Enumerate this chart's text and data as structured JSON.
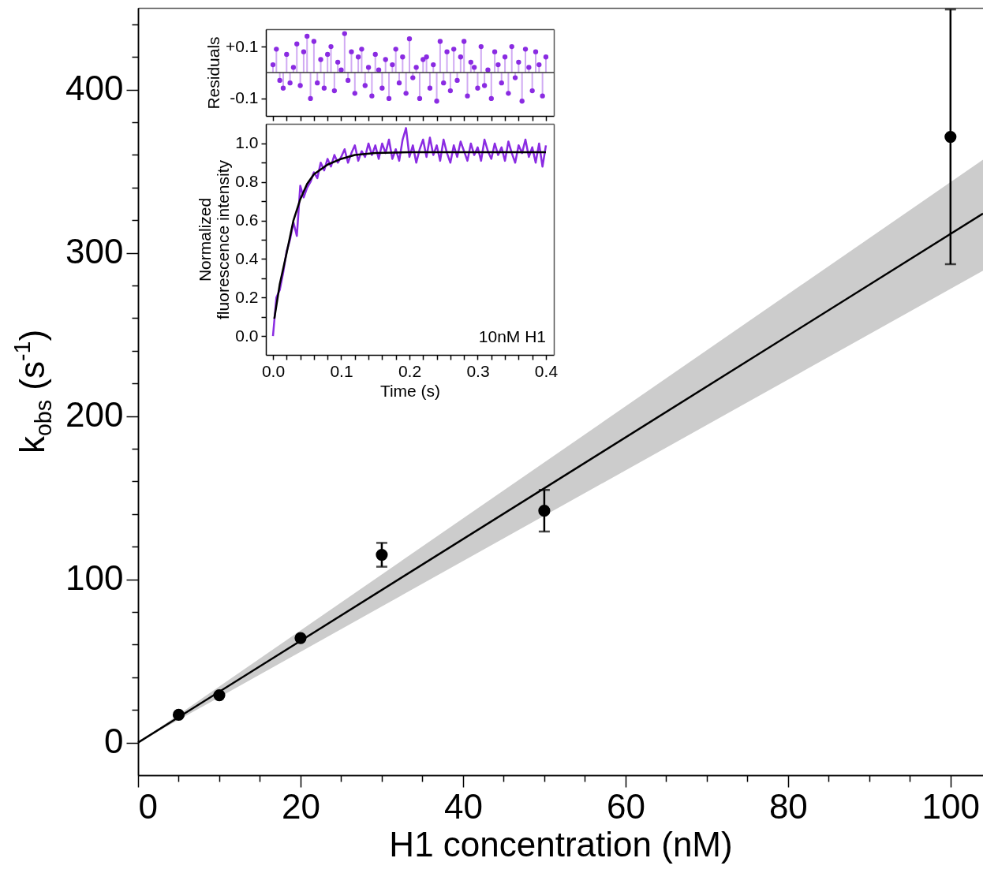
{
  "chart_data": [
    {
      "type": "scatter",
      "xlabel": "H1 concentration (nM)",
      "ylabel": "k$_{obs}$ (s$^{-1}$)",
      "xlim": [
        0,
        104
      ],
      "ylim": [
        -20,
        450
      ],
      "xticks": [
        0,
        {
          "value": 5,
          "label": null
        },
        {
          "value": 10,
          "label": null
        },
        {
          "value": 15,
          "label": null
        },
        20,
        {
          "value": 25,
          "label": null
        },
        {
          "value": 30,
          "label": null
        },
        {
          "value": 35,
          "label": null
        },
        40,
        {
          "value": 45,
          "label": null
        },
        {
          "value": 50,
          "label": null
        },
        {
          "value": 55,
          "label": null
        },
        60,
        {
          "value": 65,
          "label": null
        },
        {
          "value": 70,
          "label": null
        },
        {
          "value": 75,
          "label": null
        },
        80,
        {
          "value": 85,
          "label": null
        },
        {
          "value": 90,
          "label": null
        },
        {
          "value": 95,
          "label": null
        },
        100
      ],
      "yticks": [
        0,
        {
          "value": 20,
          "label": null
        },
        {
          "value": 40,
          "label": null
        },
        {
          "value": 60,
          "label": null
        },
        {
          "value": 80,
          "label": null
        },
        100,
        {
          "value": 120,
          "label": null
        },
        {
          "value": 140,
          "label": null
        },
        {
          "value": 160,
          "label": null
        },
        {
          "value": 180,
          "label": null
        },
        200,
        {
          "value": 220,
          "label": null
        },
        {
          "value": 240,
          "label": null
        },
        {
          "value": 260,
          "label": null
        },
        {
          "value": 280,
          "label": null
        },
        300,
        {
          "value": 320,
          "label": null
        },
        {
          "value": 340,
          "label": null
        },
        {
          "value": 360,
          "label": null
        },
        {
          "value": 380,
          "label": null
        },
        400,
        {
          "value": 420,
          "label": null
        },
        {
          "value": 440,
          "label": null
        }
      ],
      "series": [
        {
          "type": "scatter",
          "marker": "circle",
          "color": "#000000",
          "x": [
            5,
            10,
            20,
            30,
            50,
            100
          ],
          "values": [
            17,
            29,
            64,
            115,
            142,
            371
          ],
          "errors": [
            null,
            null,
            null,
            7.3,
            12.7,
            78
          ]
        },
        {
          "type": "line",
          "color": "#000000",
          "x": [
            0,
            104
          ],
          "values": [
            0,
            324
          ],
          "lower": [
            0,
            289
          ],
          "upper": [
            0,
            357
          ]
        }
      ]
    },
    {
      "type": "lollipop",
      "ylabel": "Residuals",
      "xlim": [
        -0.0104,
        0.4116
      ],
      "ylim": [
        -0.167,
        0.167
      ],
      "tick_labels": "y",
      "xticks": [
        {
          "value": 0,
          "label": null
        },
        {
          "value": 0.02,
          "label": null
        },
        {
          "value": 0.04,
          "label": null
        },
        {
          "value": 0.06,
          "label": null
        },
        {
          "value": 0.08,
          "label": null
        },
        {
          "value": 0.1,
          "label": null
        },
        {
          "value": 0.12,
          "label": null
        },
        {
          "value": 0.14,
          "label": null
        },
        {
          "value": 0.16,
          "label": null
        },
        {
          "value": 0.18,
          "label": null
        },
        {
          "value": 0.2,
          "label": null
        },
        {
          "value": 0.22,
          "label": null
        },
        {
          "value": 0.24,
          "label": null
        },
        {
          "value": 0.26,
          "label": null
        },
        {
          "value": 0.28,
          "label": null
        },
        {
          "value": 0.3,
          "label": null
        },
        {
          "value": 0.32,
          "label": null
        },
        {
          "value": 0.34,
          "label": null
        },
        {
          "value": 0.36,
          "label": null
        },
        {
          "value": 0.38,
          "label": null
        },
        {
          "value": 0.4,
          "label": null
        }
      ],
      "yticks": [
        {
          "value": -0.1,
          "label": "-0.1"
        },
        {
          "value": 0.1,
          "label": "+0.1"
        }
      ],
      "ref_lines": [
        {
          "axis": "y",
          "value": 0,
          "color": "#333333"
        }
      ],
      "series": [
        {
          "color": "#8a2be2",
          "x": [
            0,
            0.005,
            0.01,
            0.015,
            0.02,
            0.025,
            0.03,
            0.035,
            0.04,
            0.045,
            0.05,
            0.055,
            0.06,
            0.065,
            0.07,
            0.075,
            0.08,
            0.085,
            0.09,
            0.095,
            0.1,
            0.105,
            0.11,
            0.115,
            0.12,
            0.125,
            0.13,
            0.135,
            0.14,
            0.145,
            0.15,
            0.155,
            0.16,
            0.165,
            0.17,
            0.175,
            0.18,
            0.185,
            0.19,
            0.195,
            0.2,
            0.205,
            0.21,
            0.215,
            0.22,
            0.225,
            0.23,
            0.235,
            0.24,
            0.245,
            0.25,
            0.255,
            0.26,
            0.265,
            0.27,
            0.275,
            0.28,
            0.285,
            0.29,
            0.295,
            0.3,
            0.305,
            0.31,
            0.315,
            0.32,
            0.325,
            0.33,
            0.335,
            0.34,
            0.345,
            0.35,
            0.355,
            0.36,
            0.365,
            0.37,
            0.375,
            0.38,
            0.385,
            0.39,
            0.395,
            0.4
          ],
          "values": [
            0.03,
            0.09,
            -0.03,
            -0.06,
            0.07,
            -0.04,
            0.02,
            0.11,
            -0.05,
            0.08,
            0.14,
            -0.1,
            0.12,
            -0.04,
            0.05,
            -0.06,
            0.07,
            0.1,
            -0.07,
            0.04,
            0.01,
            0.15,
            -0.03,
            0.08,
            -0.08,
            0.06,
            0.09,
            -0.05,
            0.02,
            -0.09,
            0.07,
            0.01,
            -0.06,
            0.05,
            -0.1,
            0.03,
            0.09,
            -0.04,
            0.06,
            -0.08,
            0.13,
            -0.02,
            0.02,
            -0.1,
            0.05,
            0.06,
            -0.06,
            0.03,
            -0.11,
            0.12,
            -0.04,
            0.08,
            -0.07,
            0.09,
            -0.03,
            0.06,
            0.12,
            -0.09,
            0.04,
            0.02,
            -0.06,
            0.1,
            -0.05,
            0.01,
            -0.1,
            0.08,
            0.03,
            -0.04,
            0.06,
            -0.08,
            0.1,
            -0.02,
            0.04,
            -0.11,
            0.09,
            0.02,
            -0.07,
            0.08,
            0.03,
            -0.09,
            0.06
          ]
        }
      ]
    },
    {
      "type": "line",
      "xlabel": "Time (s)",
      "ylabel": "Normalized fluorescence intensity",
      "xlim": [
        -0.0104,
        0.4116
      ],
      "ylim": [
        -0.098,
        1.102
      ],
      "annotations": [
        "10nM H1"
      ],
      "xticks": [
        {
          "value": 0,
          "label": "0.0"
        },
        {
          "value": 0.02,
          "label": null
        },
        {
          "value": 0.04,
          "label": null
        },
        {
          "value": 0.06,
          "label": null
        },
        {
          "value": 0.08,
          "label": null
        },
        0.1,
        {
          "value": 0.12,
          "label": null
        },
        {
          "value": 0.14,
          "label": null
        },
        {
          "value": 0.16,
          "label": null
        },
        {
          "value": 0.18,
          "label": null
        },
        0.2,
        {
          "value": 0.22,
          "label": null
        },
        {
          "value": 0.24,
          "label": null
        },
        {
          "value": 0.26,
          "label": null
        },
        {
          "value": 0.28,
          "label": null
        },
        0.3,
        {
          "value": 0.32,
          "label": null
        },
        {
          "value": 0.34,
          "label": null
        },
        {
          "value": 0.36,
          "label": null
        },
        {
          "value": 0.38,
          "label": null
        },
        0.4
      ],
      "yticks": [
        {
          "value": 0,
          "label": "0.0"
        },
        {
          "value": 0.1,
          "label": null
        },
        0.2,
        {
          "value": 0.3,
          "label": null
        },
        0.4,
        {
          "value": 0.5,
          "label": null
        },
        0.6,
        {
          "value": 0.7,
          "label": null
        },
        0.8,
        {
          "value": 0.9,
          "label": null
        },
        {
          "value": 1,
          "label": "1.0"
        }
      ],
      "series": [
        {
          "color": "#8a2be2",
          "x": [
            0,
            0.005,
            0.01,
            0.015,
            0.02,
            0.025,
            0.03,
            0.035,
            0.04,
            0.045,
            0.05,
            0.055,
            0.06,
            0.065,
            0.07,
            0.075,
            0.08,
            0.085,
            0.09,
            0.095,
            0.1,
            0.105,
            0.11,
            0.115,
            0.12,
            0.125,
            0.13,
            0.135,
            0.14,
            0.145,
            0.15,
            0.155,
            0.16,
            0.165,
            0.17,
            0.175,
            0.18,
            0.185,
            0.19,
            0.195,
            0.2,
            0.205,
            0.21,
            0.215,
            0.22,
            0.225,
            0.23,
            0.235,
            0.24,
            0.245,
            0.25,
            0.255,
            0.26,
            0.265,
            0.27,
            0.275,
            0.28,
            0.285,
            0.29,
            0.295,
            0.3,
            0.305,
            0.31,
            0.315,
            0.32,
            0.325,
            0.33,
            0.335,
            0.34,
            0.345,
            0.35,
            0.355,
            0.36,
            0.365,
            0.37,
            0.375,
            0.38,
            0.385,
            0.39,
            0.395,
            0.4
          ],
          "values": [
            0.0,
            0.2,
            0.24,
            0.33,
            0.44,
            0.5,
            0.59,
            0.52,
            0.78,
            0.72,
            0.77,
            0.8,
            0.85,
            0.82,
            0.9,
            0.86,
            0.92,
            0.88,
            0.94,
            0.9,
            0.93,
            0.97,
            0.9,
            0.95,
            0.99,
            0.91,
            0.96,
            0.93,
            1.0,
            0.94,
            0.99,
            0.92,
            1.0,
            0.95,
            1.02,
            0.92,
            0.97,
            0.91,
            1.02,
            1.08,
            0.93,
            0.99,
            0.9,
            0.97,
            1.02,
            0.93,
            1.03,
            0.94,
            0.99,
            0.91,
            1.02,
            0.95,
            0.9,
            0.99,
            0.93,
            1.01,
            0.96,
            0.91,
            1.0,
            0.94,
            0.98,
            0.91,
            1.02,
            0.96,
            0.92,
            1.0,
            0.94,
            0.98,
            0.91,
            1.01,
            0.95,
            0.9,
            0.99,
            0.95,
            1.02,
            0.93,
            0.98,
            0.9,
            1.0,
            0.88,
            0.99
          ]
        },
        {
          "color": "#000000",
          "x": [
            0.002,
            0.01,
            0.02,
            0.03,
            0.04,
            0.05,
            0.06,
            0.08,
            0.1,
            0.12,
            0.15,
            0.2,
            0.3,
            0.4
          ],
          "values": [
            0.09,
            0.27,
            0.43,
            0.6,
            0.71,
            0.79,
            0.84,
            0.89,
            0.92,
            0.94,
            0.95,
            0.955,
            0.955,
            0.955
          ]
        }
      ]
    }
  ]
}
